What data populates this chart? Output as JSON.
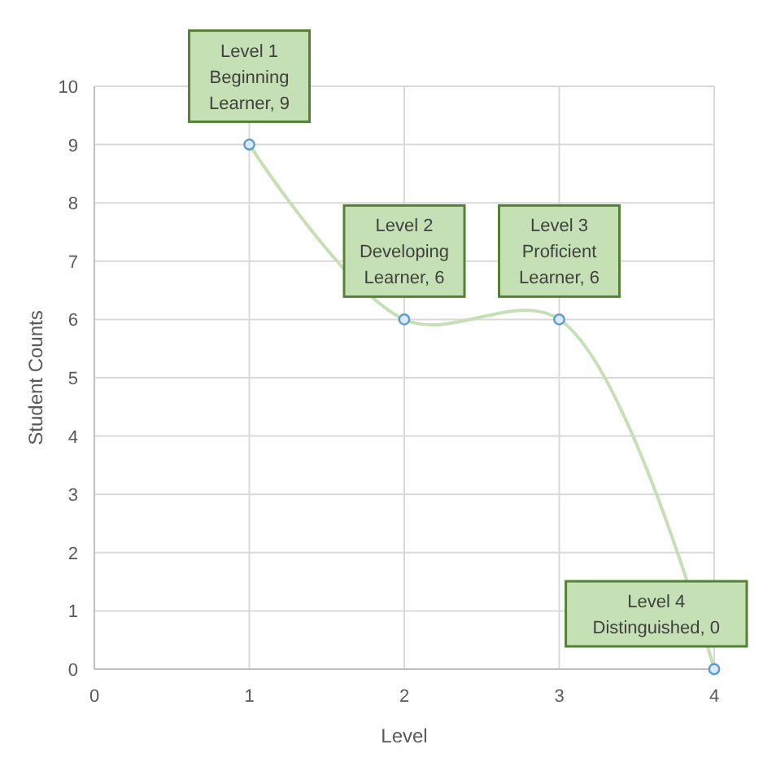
{
  "chart_data": {
    "type": "line",
    "xlabel": "Level",
    "ylabel": "Student Counts",
    "x": [
      1,
      2,
      3,
      4
    ],
    "series": [
      {
        "color": "#c5e0b4",
        "values": [
          9,
          6,
          6,
          0
        ]
      }
    ],
    "xlim": [
      0,
      4
    ],
    "xticks": [
      0,
      1,
      2,
      3,
      4
    ],
    "ylim": [
      0,
      10
    ],
    "yticks": [
      0,
      1,
      2,
      3,
      4,
      5,
      6,
      7,
      8,
      9,
      10
    ],
    "grid": true,
    "marker": "circle",
    "annotations": [
      {
        "text": "Level 1\nBeginning\nLearner, 9",
        "x": 1,
        "y": 9
      },
      {
        "text": "Level 2\nDeveloping\nLearner, 6",
        "x": 2,
        "y": 6
      },
      {
        "text": "Level 3\nProficient\nLearner, 6",
        "x": 3,
        "y": 6
      },
      {
        "text": "Level 4\nDistinguished, 0",
        "x": 4,
        "y": 0
      }
    ]
  }
}
